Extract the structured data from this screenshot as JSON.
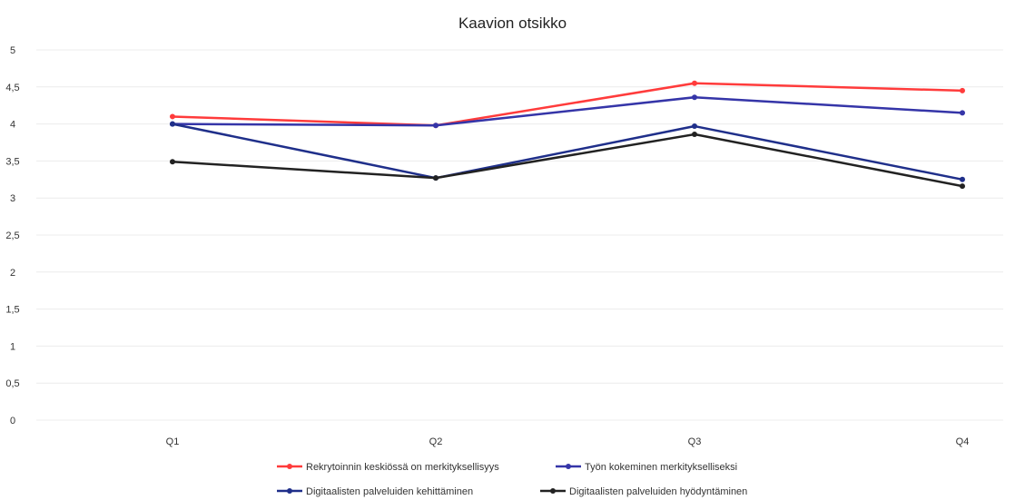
{
  "chart_data": {
    "type": "line",
    "title": "Kaavion otsikko",
    "categories": [
      "Q1",
      "Q2",
      "Q3",
      "Q4"
    ],
    "ylim": [
      0,
      5
    ],
    "yticks": [
      "0",
      "0,5",
      "1",
      "1,5",
      "2",
      "2,5",
      "3",
      "3,5",
      "4",
      "4,5",
      "5"
    ],
    "grid": true,
    "legend_position": "bottom",
    "series": [
      {
        "name": "Rekrytoinnin keskiössä on merkityksellisyys",
        "color": "#ff3b3b",
        "values": [
          4.1,
          3.98,
          4.55,
          4.45
        ]
      },
      {
        "name": "Työn kokeminen merkitykselliseksi",
        "color": "#3535a8",
        "values": [
          4.0,
          3.98,
          4.36,
          4.15
        ]
      },
      {
        "name": "Digitaalisten palveluiden kehittäminen",
        "color": "#1f2f8a",
        "values": [
          4.0,
          3.27,
          3.97,
          3.25
        ]
      },
      {
        "name": "Digitaalisten palveluiden hyödyntäminen",
        "color": "#222222",
        "values": [
          3.49,
          3.27,
          3.86,
          3.16
        ]
      }
    ]
  }
}
